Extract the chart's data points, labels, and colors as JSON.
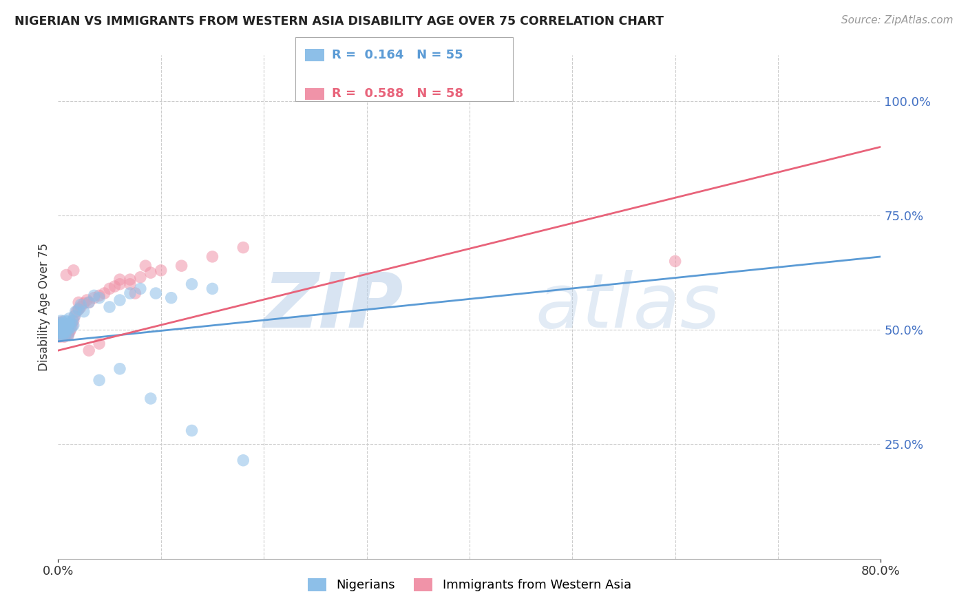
{
  "title": "NIGERIAN VS IMMIGRANTS FROM WESTERN ASIA DISABILITY AGE OVER 75 CORRELATION CHART",
  "source": "Source: ZipAtlas.com",
  "ylabel": "Disability Age Over 75",
  "xlim": [
    0.0,
    0.8
  ],
  "ylim": [
    0.0,
    1.1
  ],
  "ytick_positions": [
    0.25,
    0.5,
    0.75,
    1.0
  ],
  "ytick_labels": [
    "25.0%",
    "50.0%",
    "75.0%",
    "100.0%"
  ],
  "nigerians_R": 0.164,
  "nigerians_N": 55,
  "western_asia_R": 0.588,
  "western_asia_N": 58,
  "nigerian_color": "#8dbfe8",
  "western_asia_color": "#f093a8",
  "nigerian_line_color": "#5b9bd5",
  "western_asia_line_color": "#e8637a",
  "watermark_zip": "ZIP",
  "watermark_atlas": "atlas",
  "background_color": "#ffffff",
  "grid_color": "#cccccc",
  "axis_label_color": "#4472c4",
  "nigerian_x": [
    0.001,
    0.001,
    0.001,
    0.002,
    0.002,
    0.002,
    0.002,
    0.003,
    0.003,
    0.003,
    0.003,
    0.004,
    0.004,
    0.004,
    0.005,
    0.005,
    0.005,
    0.006,
    0.006,
    0.007,
    0.007,
    0.007,
    0.008,
    0.008,
    0.009,
    0.009,
    0.01,
    0.01,
    0.011,
    0.011,
    0.012,
    0.013,
    0.014,
    0.015,
    0.016,
    0.017,
    0.02,
    0.022,
    0.025,
    0.03,
    0.035,
    0.04,
    0.05,
    0.06,
    0.07,
    0.08,
    0.095,
    0.11,
    0.13,
    0.15,
    0.04,
    0.06,
    0.09,
    0.13,
    0.18
  ],
  "nigerian_y": [
    0.5,
    0.49,
    0.51,
    0.488,
    0.505,
    0.495,
    0.515,
    0.5,
    0.492,
    0.508,
    0.52,
    0.498,
    0.512,
    0.505,
    0.49,
    0.502,
    0.515,
    0.495,
    0.51,
    0.488,
    0.505,
    0.52,
    0.495,
    0.51,
    0.502,
    0.518,
    0.49,
    0.51,
    0.505,
    0.525,
    0.515,
    0.505,
    0.52,
    0.51,
    0.53,
    0.54,
    0.545,
    0.555,
    0.54,
    0.56,
    0.575,
    0.57,
    0.55,
    0.565,
    0.58,
    0.59,
    0.58,
    0.57,
    0.6,
    0.59,
    0.39,
    0.415,
    0.35,
    0.28,
    0.215
  ],
  "western_asia_x": [
    0.001,
    0.001,
    0.002,
    0.002,
    0.002,
    0.003,
    0.003,
    0.004,
    0.004,
    0.004,
    0.005,
    0.005,
    0.006,
    0.006,
    0.007,
    0.007,
    0.008,
    0.008,
    0.009,
    0.009,
    0.01,
    0.01,
    0.011,
    0.011,
    0.012,
    0.013,
    0.014,
    0.015,
    0.016,
    0.018,
    0.02,
    0.022,
    0.025,
    0.028,
    0.03,
    0.035,
    0.04,
    0.045,
    0.05,
    0.055,
    0.06,
    0.07,
    0.08,
    0.09,
    0.1,
    0.12,
    0.15,
    0.18,
    0.008,
    0.015,
    0.02,
    0.03,
    0.04,
    0.06,
    0.07,
    0.075,
    0.085,
    0.6
  ],
  "western_asia_y": [
    0.492,
    0.508,
    0.485,
    0.5,
    0.515,
    0.49,
    0.505,
    0.488,
    0.502,
    0.518,
    0.495,
    0.51,
    0.485,
    0.502,
    0.49,
    0.508,
    0.495,
    0.512,
    0.49,
    0.505,
    0.488,
    0.505,
    0.495,
    0.512,
    0.5,
    0.515,
    0.51,
    0.52,
    0.53,
    0.54,
    0.545,
    0.55,
    0.558,
    0.565,
    0.56,
    0.57,
    0.575,
    0.58,
    0.59,
    0.595,
    0.6,
    0.61,
    0.615,
    0.625,
    0.63,
    0.64,
    0.66,
    0.68,
    0.62,
    0.63,
    0.56,
    0.455,
    0.47,
    0.61,
    0.6,
    0.58,
    0.64,
    0.65
  ],
  "nig_trend_x0": 0.0,
  "nig_trend_y0": 0.475,
  "nig_trend_x1": 0.8,
  "nig_trend_y1": 0.66,
  "west_trend_x0": 0.0,
  "west_trend_y0": 0.455,
  "west_trend_x1": 0.8,
  "west_trend_y1": 0.9
}
